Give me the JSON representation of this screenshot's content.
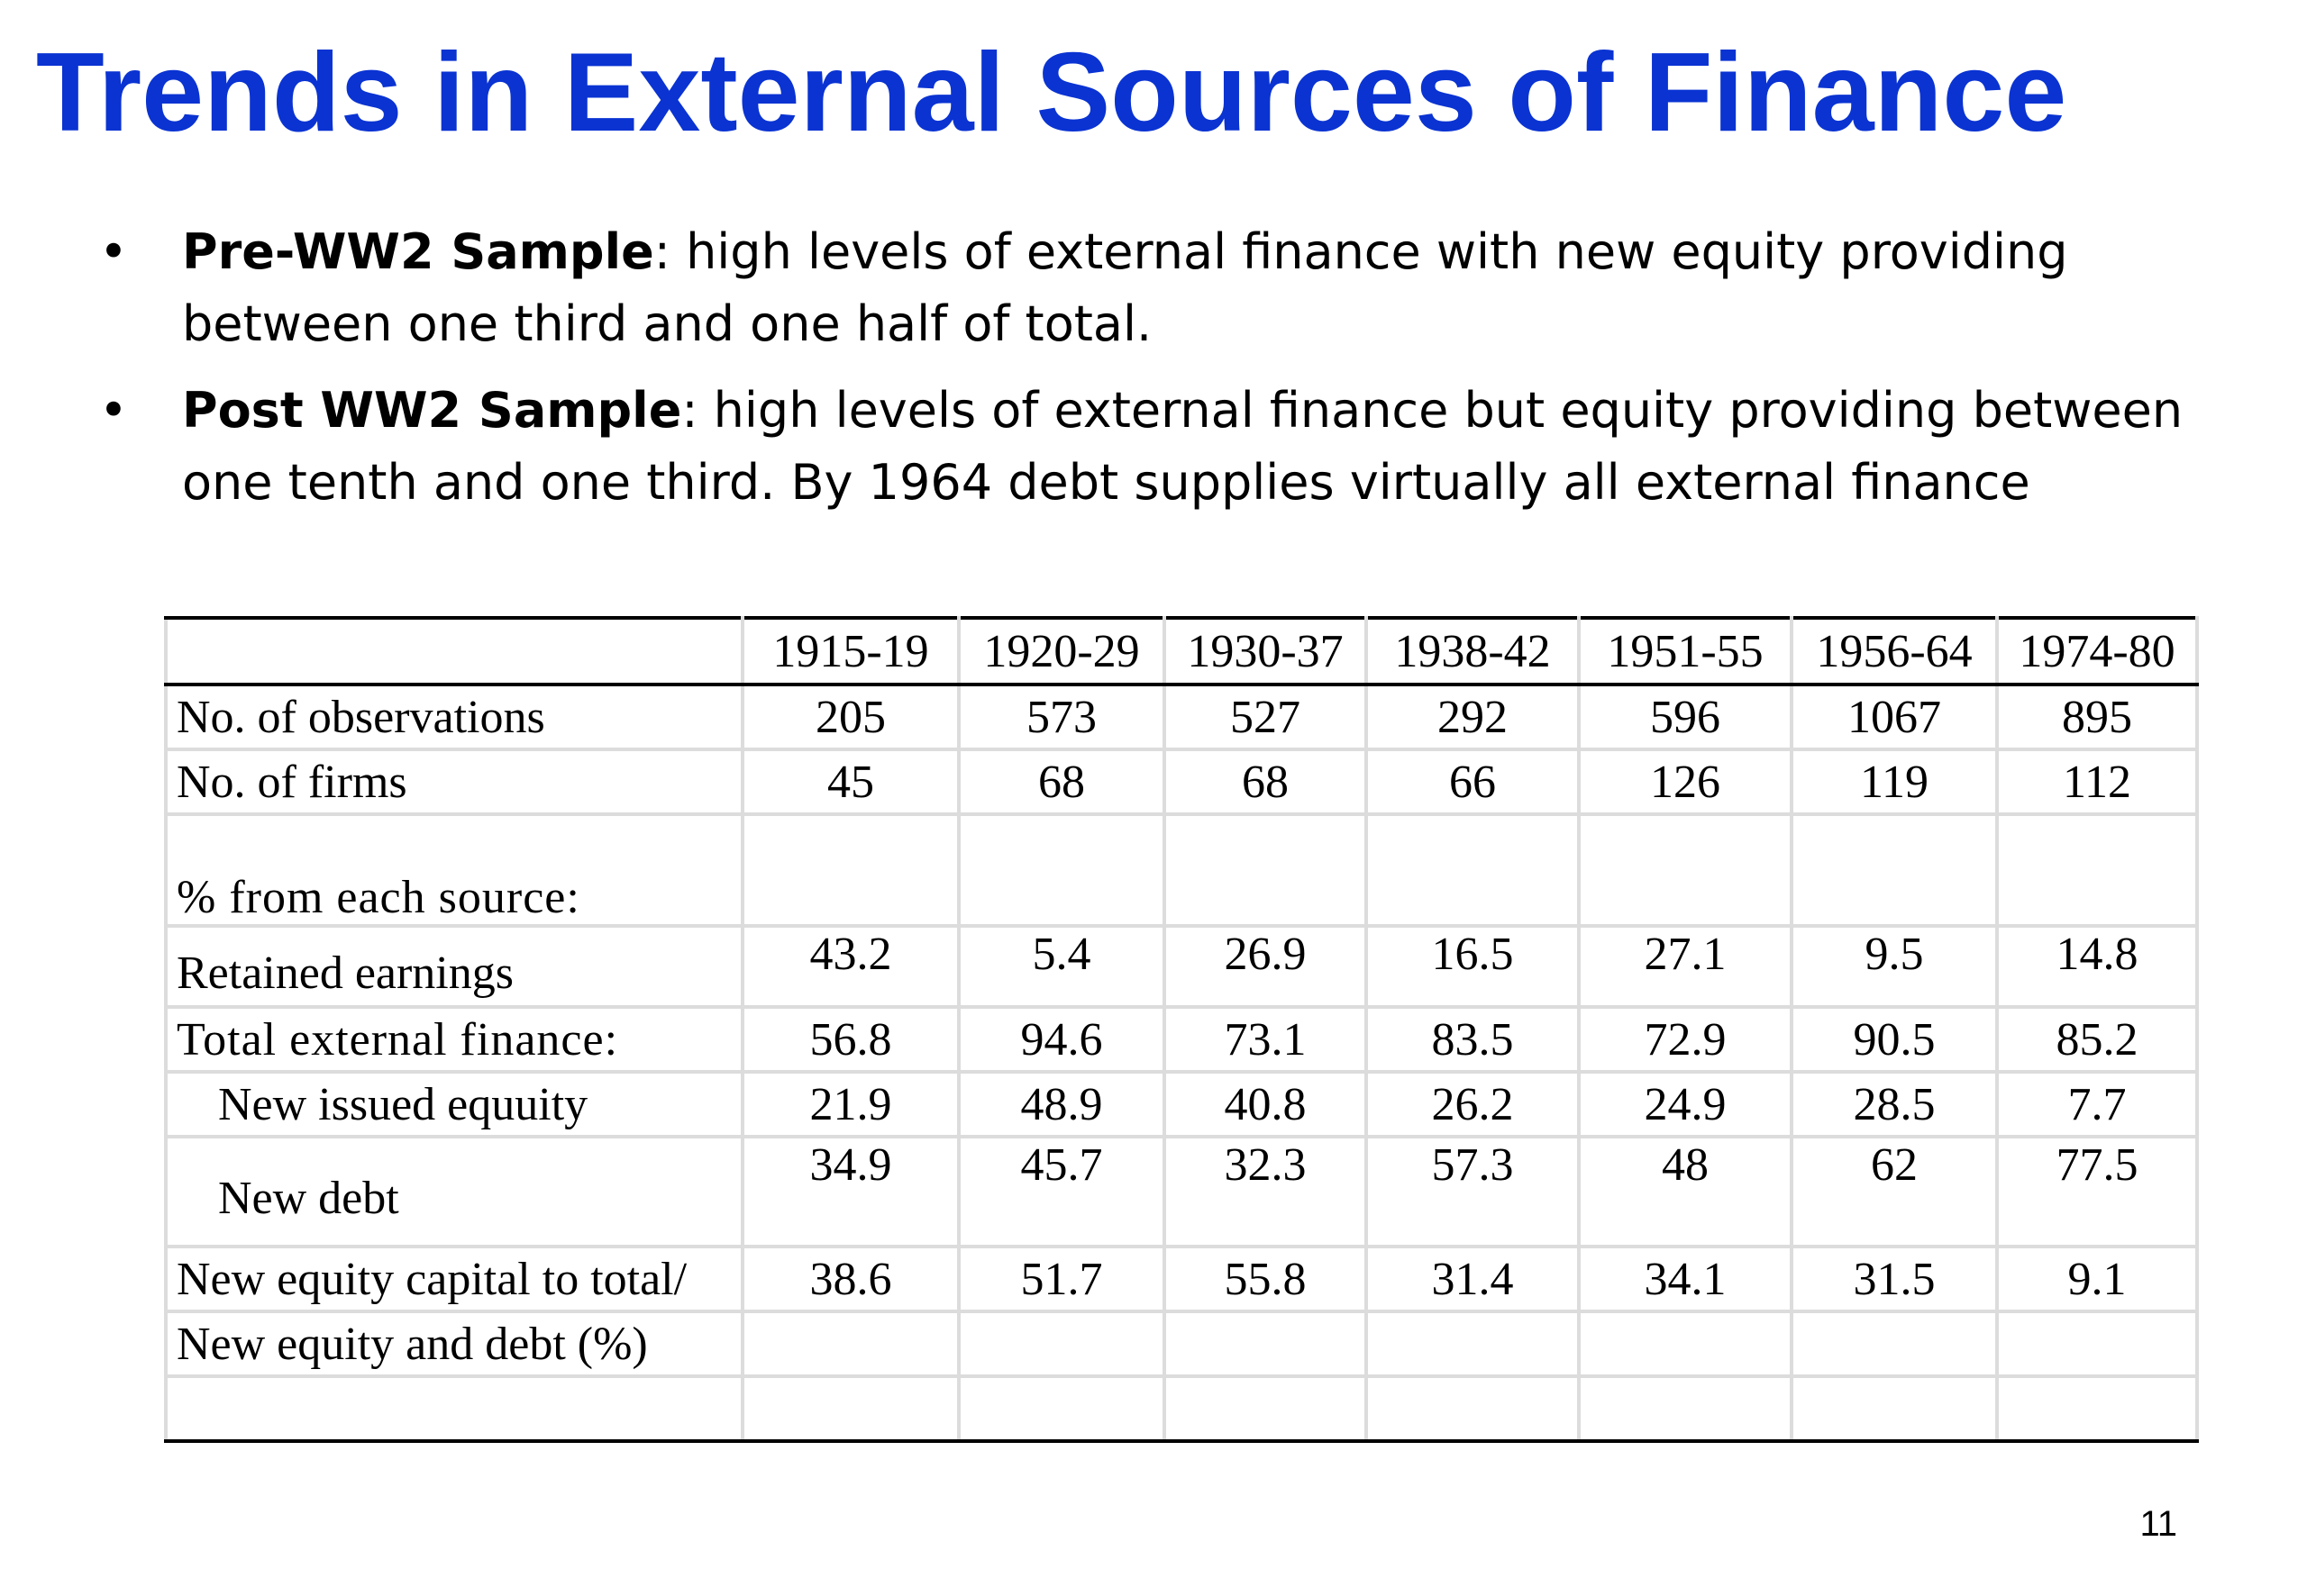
{
  "title": "Trends in External Sources of Finance",
  "bullets": [
    {
      "bold": "Pre-WW2 Sample",
      "text": ": high levels of external finance with new equity providing between one third and one half of total."
    },
    {
      "bold": "Post WW2 Sample",
      "text": ": high levels of external finance but equity providing between one tenth and one third. By 1964 debt supplies virtually all external finance"
    }
  ],
  "table": {
    "headers": [
      "",
      "1915-19",
      "1920-29",
      "1930-37",
      "1938-42",
      "1951-55",
      "1956-64",
      "1974-80"
    ],
    "observations": {
      "label": "No. of observations",
      "values": [
        "205",
        "573",
        "527",
        "292",
        "596",
        "1067",
        "895"
      ]
    },
    "firms": {
      "label": "No. of firms",
      "values": [
        "45",
        "68",
        "68",
        "66",
        "126",
        "119",
        "112"
      ]
    },
    "section_label": "% from each source:",
    "retained": {
      "label": "Retained earnings",
      "values": [
        "43.2",
        "5.4",
        "26.9",
        "16.5",
        "27.1",
        "9.5",
        "14.8"
      ]
    },
    "external": {
      "label": "Total external finance:",
      "values": [
        "56.8",
        "94.6",
        "73.1",
        "83.5",
        "72.9",
        "90.5",
        "85.2"
      ]
    },
    "equity": {
      "label": "New issued equuity",
      "values": [
        "21.9",
        "48.9",
        "40.8",
        "26.2",
        "24.9",
        "28.5",
        "7.7"
      ]
    },
    "debt": {
      "label": "New debt",
      "values": [
        "34.9",
        "45.7",
        "32.3",
        "57.3",
        "48",
        "62",
        "77.5"
      ]
    },
    "ratio": {
      "label_line1": "New equity capital to total/",
      "label_line2": "New equity and debt (%)",
      "values": [
        "38.6",
        "51.7",
        "55.8",
        "31.4",
        "34.1",
        "31.5",
        "9.1"
      ]
    }
  },
  "page_number": "11",
  "colors": {
    "title": "#0a33d2",
    "grid": "#dcdcdc",
    "rule": "#000000"
  }
}
